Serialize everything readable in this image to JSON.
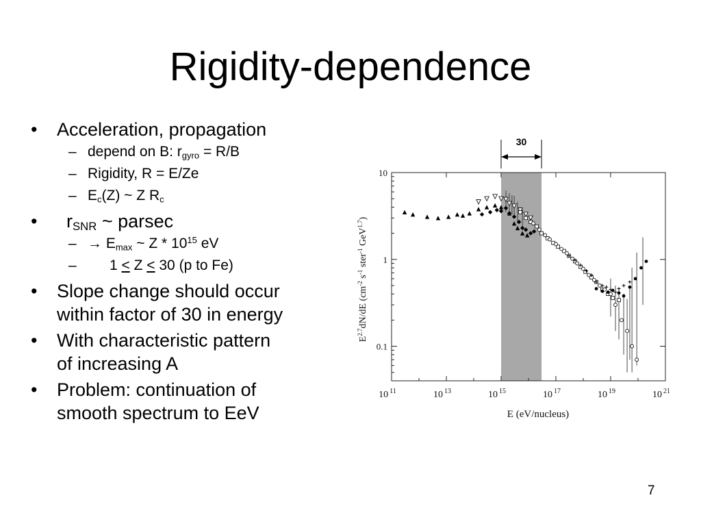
{
  "slide": {
    "title": "Rigidity-dependence",
    "page_number": "7",
    "bullets": {
      "b1": "Acceleration, propagation",
      "b1a_pre": "depend on B: r",
      "b1a_sub": "gyro",
      "b1a_post": " = R/B",
      "b1b": "Rigidity, R = E/Ze",
      "b1c_e": "E",
      "b1c_sub1": "c",
      "b1c_mid": "(Z) ~ Z R",
      "b1c_sub2": "c",
      "b2_r": "r",
      "b2_sub": "SNR",
      "b2_post": " ~ parsec",
      "b2a_arrow": "→",
      "b2a_e": " E",
      "b2a_sub": "max",
      "b2a_mid": " ~ Z * 10",
      "b2a_sup": "15",
      "b2a_post": " eV",
      "b2b_1": "1 ",
      "b2b_le1": "<",
      "b2b_z": " Z ",
      "b2b_le2": "<",
      "b2b_post": " 30 (p to Fe)",
      "b3_l1": "Slope change should occur",
      "b3_l2": "within factor of 30 in energy",
      "b4_l1": "With characteristic pattern",
      "b4_l2": "of increasing A",
      "b5_l1": "Problem: continuation of",
      "b5_l2": "smooth spectrum to EeV"
    },
    "markers": {
      "bullet": "•",
      "dash": "–"
    }
  },
  "chart_data": {
    "type": "scatter",
    "xlabel": "E  (eV/nucleus)",
    "ylabel": "E2.7dN/dE  (cm-2 s-1 ster-1 GeV1.7)",
    "ylabel_parts": {
      "a": "E",
      "a_sup": "2.7",
      "b": "dN/dE  (cm",
      "b_sup": "-2",
      "c": " s",
      "c_sup": "-1",
      "d": " ster",
      "d_sup": "-1",
      "e": " GeV",
      "e_sup": "1.7",
      "f": ")"
    },
    "x_scale": "log",
    "y_scale": "log",
    "xlim": [
      100000000000.0,
      1e+21
    ],
    "ylim": [
      0.04,
      10
    ],
    "x_ticks": [
      {
        "base": "10",
        "exp": "11"
      },
      {
        "base": "10",
        "exp": "13"
      },
      {
        "base": "10",
        "exp": "15"
      },
      {
        "base": "10",
        "exp": "17"
      },
      {
        "base": "10",
        "exp": "19"
      },
      {
        "base": "10",
        "exp": "21"
      }
    ],
    "y_ticks": [
      "10",
      "1",
      "0.1"
    ],
    "band": {
      "from": 1000000000000000.0,
      "to": 3e+16,
      "color": "#a8a8a8",
      "label": "30"
    },
    "series": [
      {
        "marker": "filled-triangle",
        "points": [
          [
            300000000000.0,
            3.5
          ],
          [
            600000000000.0,
            3.3
          ],
          [
            2000000000000.0,
            3.1
          ],
          [
            5000000000000.0,
            3.0
          ],
          [
            12000000000000.0,
            3.1
          ],
          [
            25000000000000.0,
            3.3
          ],
          [
            40000000000000.0,
            3.2
          ],
          [
            70000000000000.0,
            3.4
          ],
          [
            150000000000000.0,
            3.8
          ],
          [
            300000000000000.0,
            4.0
          ],
          [
            600000000000000.0,
            4.2
          ],
          [
            1000000000000000.0,
            4.0
          ],
          [
            2000000000000000.0,
            3.4
          ],
          [
            3000000000000000.0,
            2.6
          ],
          [
            4000000000000000.0,
            2.3
          ],
          [
            6000000000000000.0,
            2.0
          ],
          [
            9000000000000000.0,
            1.9
          ]
        ]
      },
      {
        "marker": "filled-diamond",
        "points": [
          [
            200000000000000.0,
            3.3
          ],
          [
            400000000000000.0,
            3.5
          ],
          [
            700000000000000.0,
            3.7
          ],
          [
            1000000000000000.0,
            3.6
          ],
          [
            1500000000000000.0,
            3.9
          ],
          [
            2000000000000000.0,
            3.4
          ],
          [
            3000000000000000.0,
            3.1
          ],
          [
            4500000000000000.0,
            2.7
          ],
          [
            6000000000000000.0,
            2.3
          ],
          [
            8000000000000000.0,
            2.2
          ],
          [
            1.2e+16,
            2.0
          ],
          [
            1.6e+16,
            2.1
          ]
        ]
      },
      {
        "marker": "open-triangle",
        "points": [
          [
            150000000000000.0,
            4.6
          ],
          [
            300000000000000.0,
            5.0
          ],
          [
            600000000000000.0,
            5.3
          ],
          [
            1000000000000000.0,
            5.0
          ],
          [
            1500000000000000.0,
            4.9
          ],
          [
            2000000000000000.0,
            4.4
          ],
          [
            3000000000000000.0,
            4.1
          ],
          [
            5000000000000000.0,
            3.7
          ],
          [
            8000000000000000.0,
            3.3
          ],
          [
            1.2e+16,
            3.0
          ]
        ]
      },
      {
        "marker": "open-square",
        "points": [
          [
            5000000000000000.0,
            3.5
          ],
          [
            8000000000000000.0,
            3.0
          ],
          [
            1.2e+16,
            2.7
          ],
          [
            2e+16,
            2.4
          ],
          [
            3e+16,
            2.0
          ],
          [
            5e+16,
            1.75
          ],
          [
            8e+16,
            1.55
          ],
          [
            1.2e+17,
            1.4
          ],
          [
            2e+17,
            1.25
          ],
          [
            3e+17,
            1.1
          ],
          [
            5e+17,
            0.95
          ],
          [
            8e+17,
            0.82
          ],
          [
            1.2e+18,
            0.72
          ],
          [
            2e+18,
            0.62
          ],
          [
            3e+18,
            0.55
          ],
          [
            5e+18,
            0.45
          ],
          [
            8e+18,
            0.4
          ],
          [
            1.2e+19,
            0.36
          ],
          [
            2e+19,
            0.34
          ]
        ]
      },
      {
        "marker": "open-circle",
        "points": [
          [
            1.5e+16,
            2.6
          ],
          [
            2.5e+16,
            2.2
          ],
          [
            4e+16,
            1.9
          ],
          [
            6e+16,
            1.7
          ],
          [
            1e+17,
            1.5
          ],
          [
            1.6e+17,
            1.32
          ],
          [
            2.5e+17,
            1.18
          ],
          [
            4e+17,
            1.02
          ],
          [
            6e+17,
            0.9
          ],
          [
            1e+18,
            0.78
          ],
          [
            1.6e+18,
            0.66
          ],
          [
            2.5e+18,
            0.58
          ],
          [
            4e+18,
            0.5
          ],
          [
            6e+18,
            0.45
          ],
          [
            1e+19,
            0.4
          ],
          [
            1.5e+19,
            0.3
          ],
          [
            2.5e+19,
            0.2
          ],
          [
            4e+19,
            0.15
          ],
          [
            6e+19,
            0.1
          ],
          [
            9e+19,
            0.07
          ]
        ]
      },
      {
        "marker": "small-cross",
        "points": [
          [
            3e+17,
            1.1
          ],
          [
            5e+17,
            0.98
          ],
          [
            8e+17,
            0.86
          ],
          [
            1.3e+18,
            0.74
          ],
          [
            2e+18,
            0.66
          ],
          [
            3e+18,
            0.55
          ],
          [
            5e+18,
            0.5
          ],
          [
            7e+18,
            0.48
          ],
          [
            1e+19,
            0.45
          ],
          [
            1.5e+19,
            0.42
          ],
          [
            2e+19,
            0.46
          ],
          [
            3e+19,
            0.5
          ],
          [
            5e+19,
            0.55
          ]
        ]
      },
      {
        "marker": "filled-circle",
        "points": [
          [
            3e+18,
            0.46
          ],
          [
            5e+18,
            0.43
          ],
          [
            8e+18,
            0.42
          ],
          [
            1.2e+19,
            0.44
          ],
          [
            2e+19,
            0.41
          ],
          [
            3e+19,
            0.38
          ],
          [
            5e+19,
            0.48
          ],
          [
            8e+19,
            0.6
          ],
          [
            1.3e+20,
            0.8
          ],
          [
            2e+20,
            0.95
          ]
        ]
      }
    ],
    "error_bars": [
      [
        1500000000000000.0,
        3.5,
        6.2
      ],
      [
        2000000000000000.0,
        3.2,
        5.8
      ],
      [
        2500000000000000.0,
        3.3,
        5.5
      ],
      [
        3000000000000000.0,
        3.0,
        5.4
      ],
      [
        4000000000000000.0,
        2.6,
        4.6
      ],
      [
        6000000000000000.0,
        2.4,
        3.8
      ],
      [
        1e+19,
        0.22,
        0.6
      ],
      [
        1.5e+19,
        0.15,
        0.5
      ],
      [
        2e+19,
        0.12,
        0.45
      ],
      [
        3e+19,
        0.08,
        0.4
      ],
      [
        4e+19,
        0.05,
        0.35
      ],
      [
        5e+19,
        0.07,
        0.5
      ],
      [
        6e+19,
        0.05,
        0.8
      ],
      [
        9e+19,
        0.06,
        1.2
      ],
      [
        1.5e+20,
        0.3,
        1.8
      ]
    ]
  }
}
